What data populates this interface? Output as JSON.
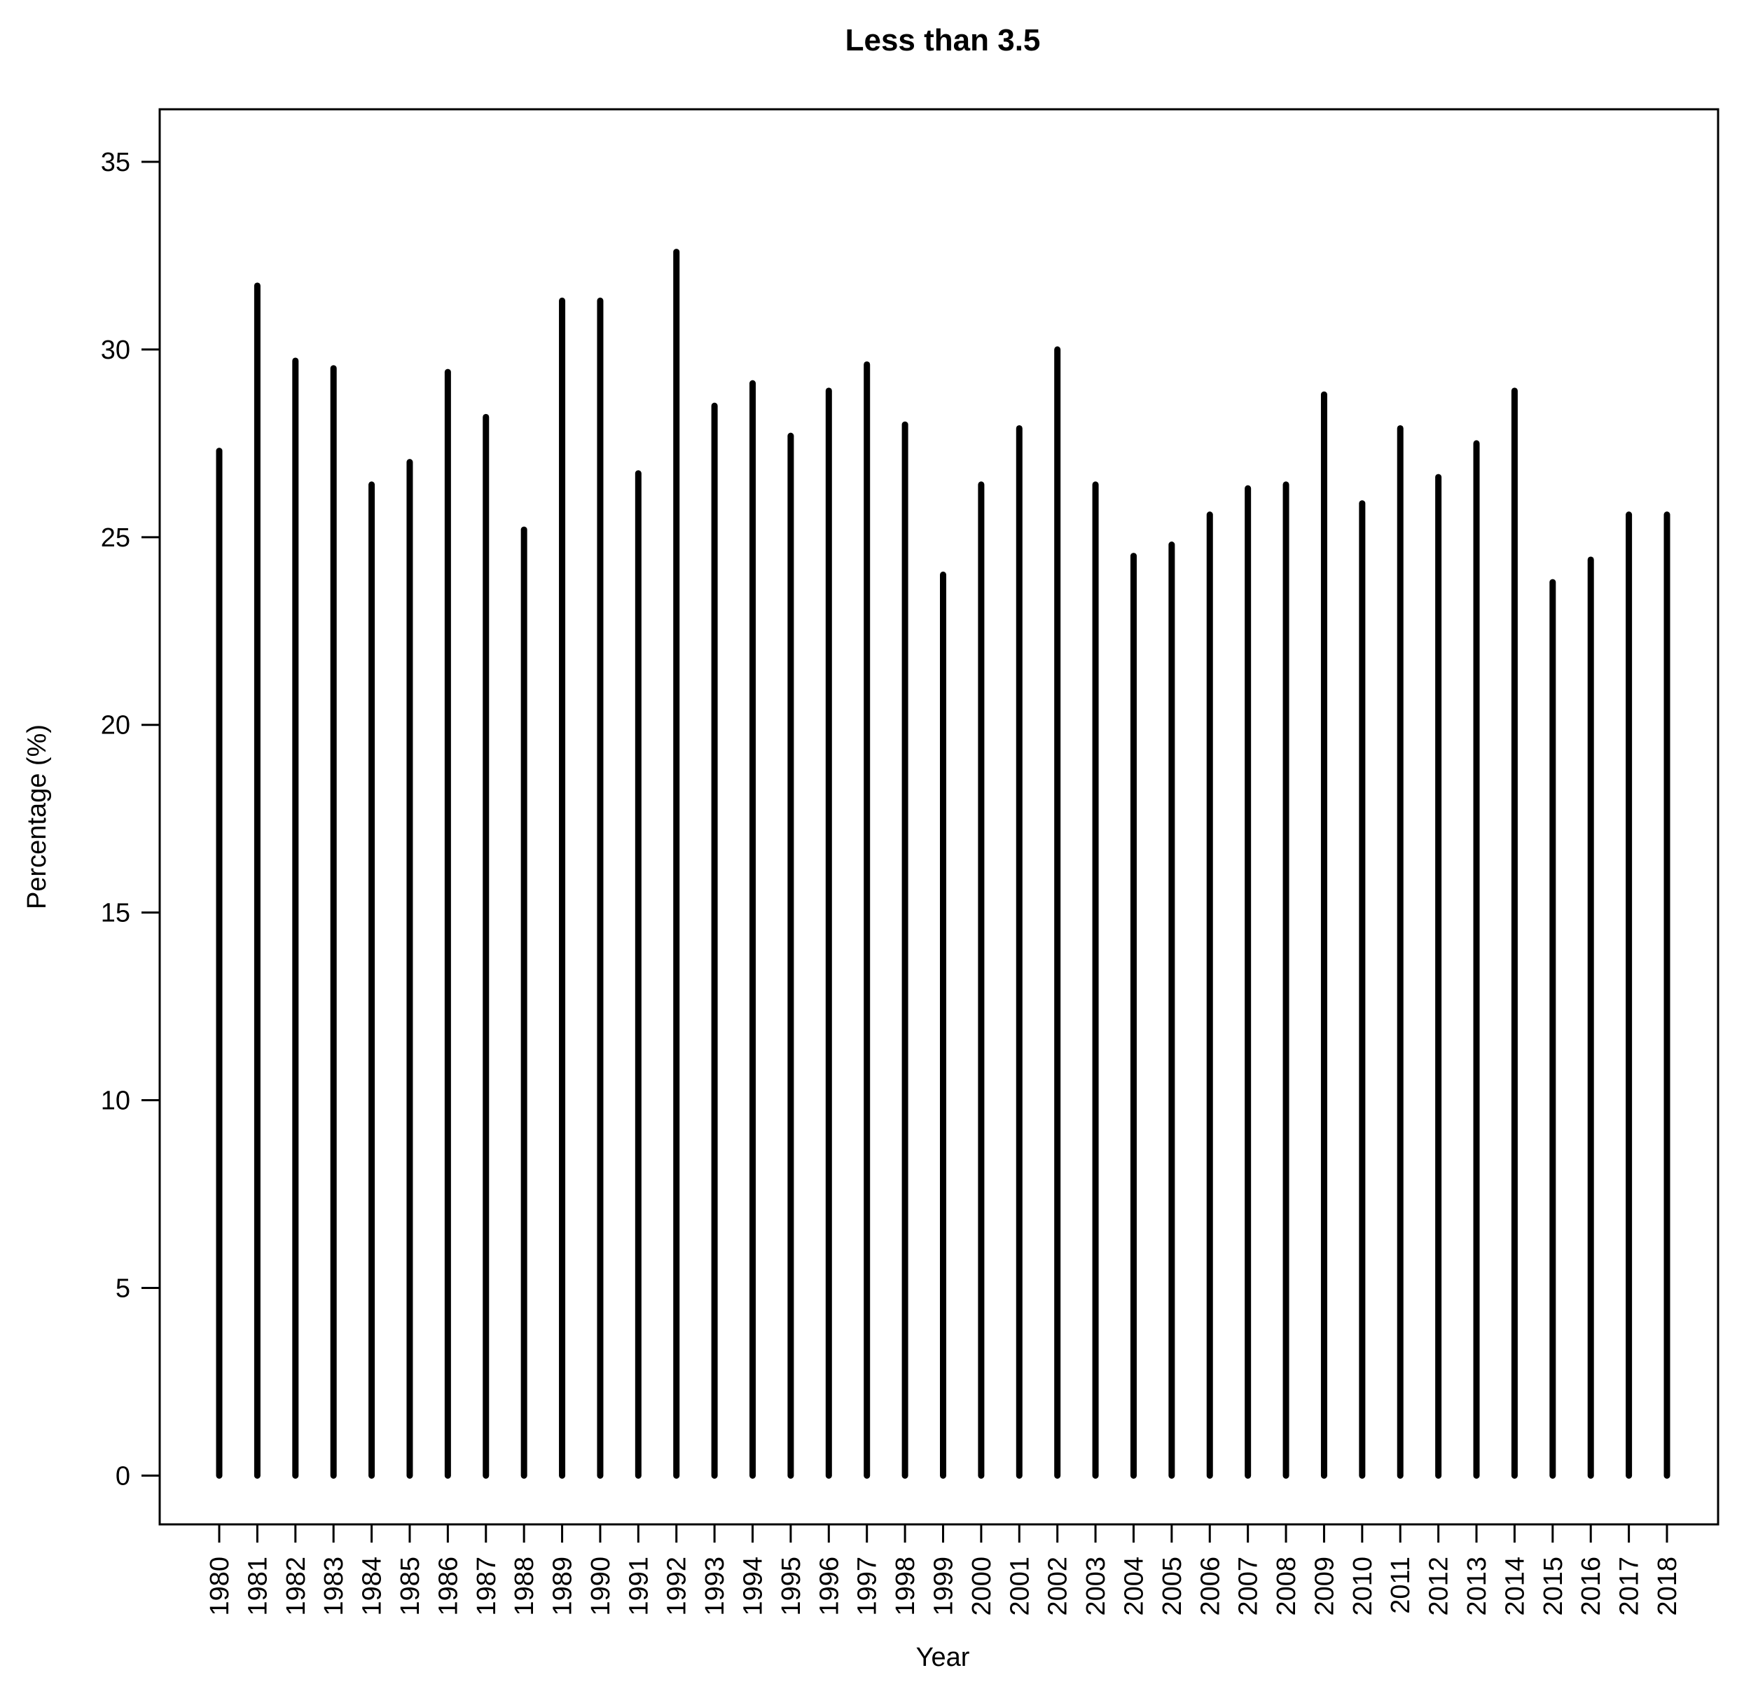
{
  "chart_data": {
    "type": "bar",
    "title": "Less than 3.5",
    "xlabel": "Year",
    "ylabel": "Percentage (%)",
    "ylim": [
      -1.3,
      36.4
    ],
    "yticks": [
      0,
      5,
      10,
      15,
      20,
      25,
      30,
      35
    ],
    "grid": false,
    "legend": "none",
    "bar_color": "#000000",
    "categories": [
      "1980",
      "1981",
      "1982",
      "1983",
      "1984",
      "1985",
      "1986",
      "1987",
      "1988",
      "1989",
      "1990",
      "1991",
      "1992",
      "1993",
      "1994",
      "1995",
      "1996",
      "1997",
      "1998",
      "1999",
      "2000",
      "2001",
      "2002",
      "2003",
      "2004",
      "2005",
      "2006",
      "2007",
      "2008",
      "2009",
      "2010",
      "2011",
      "2012",
      "2013",
      "2014",
      "2015",
      "2016",
      "2017",
      "2018"
    ],
    "values": [
      27.3,
      31.7,
      29.7,
      29.5,
      26.4,
      27.0,
      29.4,
      28.2,
      25.2,
      31.3,
      31.3,
      26.7,
      32.6,
      28.5,
      29.1,
      27.7,
      28.9,
      29.6,
      28.0,
      24.0,
      26.4,
      27.9,
      30.0,
      26.4,
      24.5,
      24.8,
      25.6,
      26.3,
      26.4,
      28.8,
      25.9,
      27.9,
      26.6,
      27.5,
      28.9,
      23.8,
      24.4,
      25.6,
      25.6
    ]
  }
}
